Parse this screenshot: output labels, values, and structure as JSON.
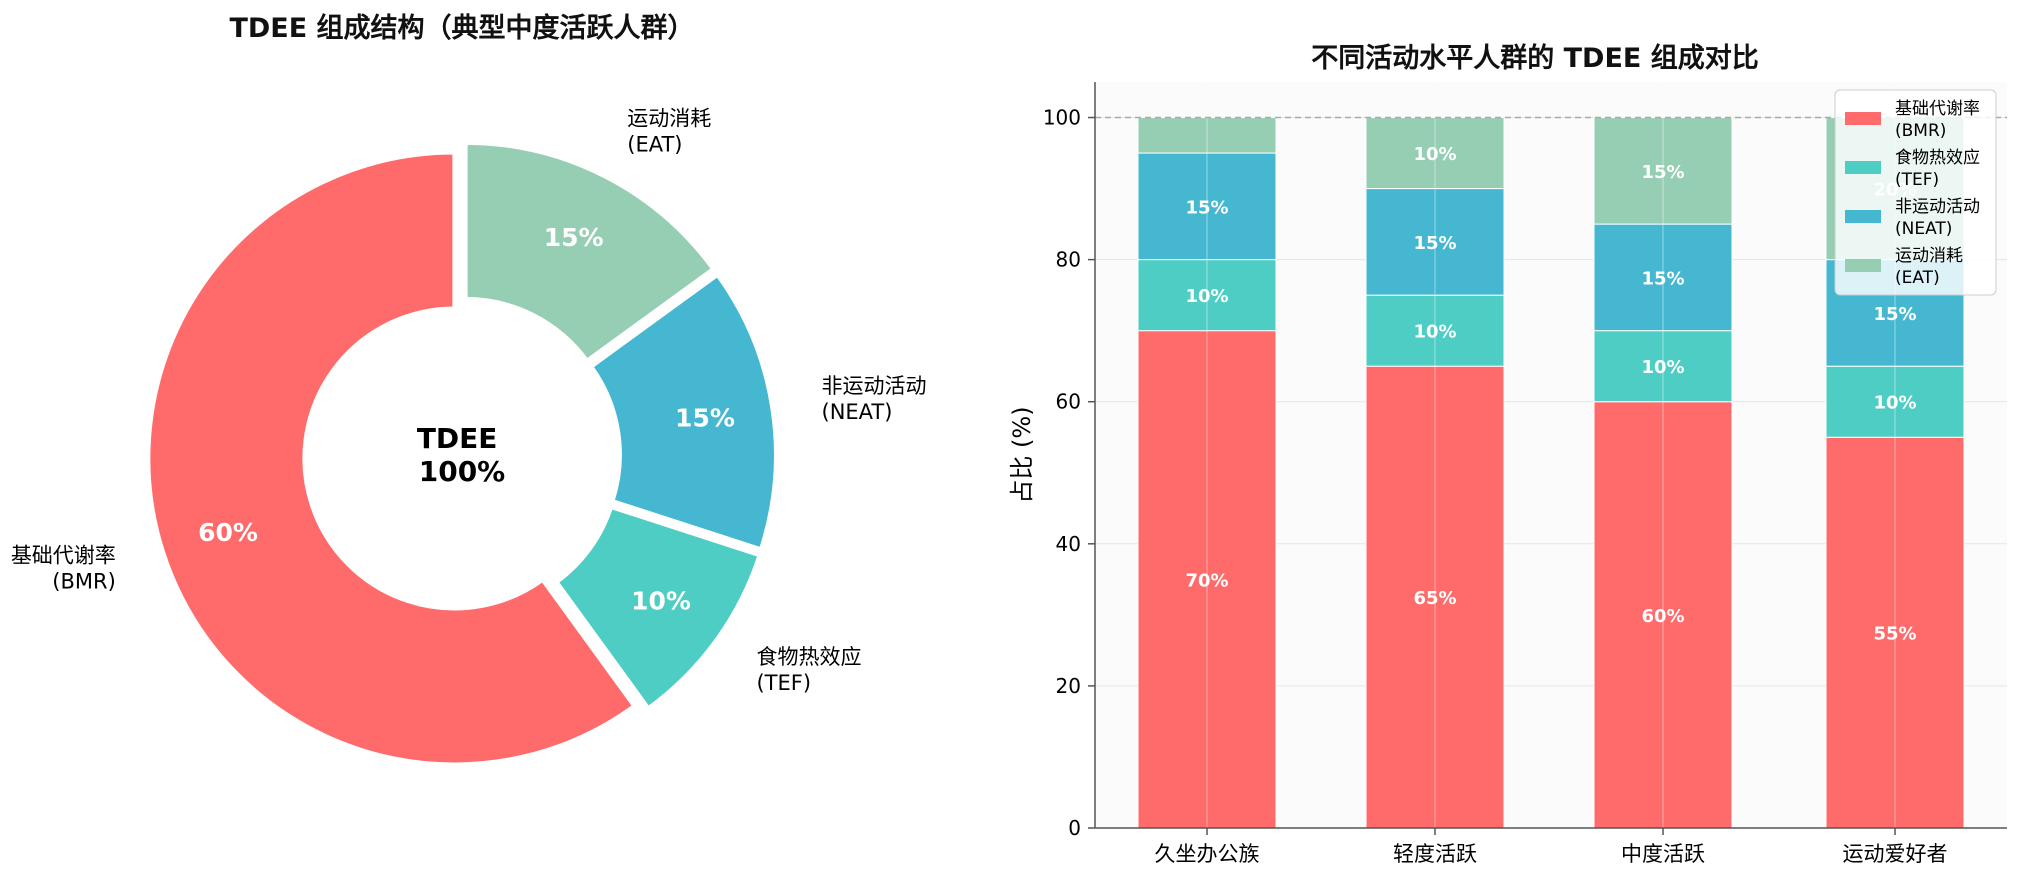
{
  "chart_data": [
    {
      "type": "pie",
      "title": "TDEE 组成结构（典型中度活跃人群）",
      "center_label": [
        "TDEE",
        "100%"
      ],
      "labels": [
        "基础代谢率\n(BMR)",
        "食物热效应\n(TEF)",
        "非运动活动\n(NEAT)",
        "运动消耗\n(EAT)"
      ],
      "values": [
        60,
        10,
        15,
        15
      ],
      "value_labels": [
        "60%",
        "10%",
        "15%",
        "15%"
      ],
      "colors": [
        "#ff6b6b",
        "#4ecdc4",
        "#45b7d1",
        "#96ceb4"
      ]
    },
    {
      "type": "bar",
      "stacked": true,
      "title": "不同活动水平人群的 TDEE 组成对比",
      "xlabel": "",
      "ylabel": "占比 (%)",
      "ylim": [
        0,
        105
      ],
      "yticks": [
        0,
        20,
        40,
        60,
        80,
        100
      ],
      "categories": [
        "久坐办公族",
        "轻度活跃",
        "中度活跃",
        "运动爱好者"
      ],
      "series": [
        {
          "name": "基础代谢率\n(BMR)",
          "values": [
            70,
            65,
            60,
            55
          ],
          "color": "#ff6b6b"
        },
        {
          "name": "食物热效应\n(TEF)",
          "values": [
            10,
            10,
            10,
            10
          ],
          "color": "#4ecdc4"
        },
        {
          "name": "非运动活动\n(NEAT)",
          "values": [
            15,
            15,
            15,
            15
          ],
          "color": "#45b7d1"
        },
        {
          "name": "运动消耗\n(EAT)",
          "values": [
            5,
            10,
            15,
            20
          ],
          "color": "#96ceb4"
        }
      ],
      "data_labels": [
        [
          "70%",
          "65%",
          "60%",
          "55%"
        ],
        [
          "10%",
          "10%",
          "10%",
          "10%"
        ],
        [
          "15%",
          "15%",
          "15%",
          "15%"
        ],
        [
          "",
          "10%",
          "15%",
          "20%"
        ]
      ],
      "grid": true,
      "reference_line": 100,
      "legend": "top-right"
    }
  ]
}
